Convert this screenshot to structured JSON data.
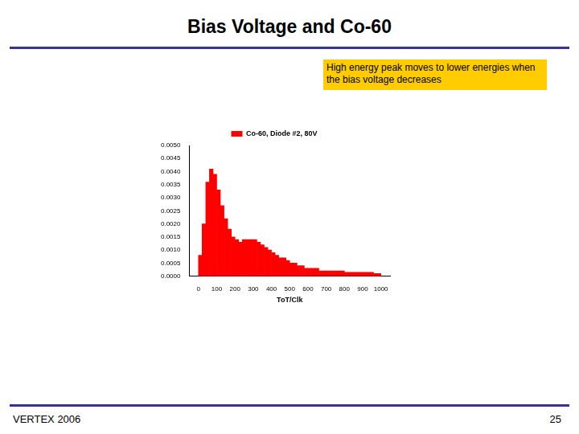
{
  "slide": {
    "title": "Bias Voltage and Co-60",
    "annotation": "High energy peak moves to lower energies when the bias voltage decreases",
    "footer": "VERTEX 2006",
    "page": "25"
  },
  "chart_data": {
    "type": "histogram",
    "x_label": "ToT/Clk",
    "bins": [
      0,
      20,
      40,
      60,
      80,
      100,
      120,
      140,
      160,
      180,
      200,
      220,
      240,
      260,
      280,
      300,
      320,
      340,
      360,
      380,
      400,
      420,
      440,
      460,
      480,
      500,
      520,
      540,
      560,
      580,
      600,
      620,
      640,
      660,
      680,
      700,
      720,
      740,
      760,
      780,
      800,
      820,
      840,
      860,
      880,
      900,
      920,
      940,
      960,
      980,
      1000
    ],
    "series": [
      {
        "name": "Co-60, Diode #2, 80V",
        "color": "#ff0000",
        "values": [
          0.0008,
          0.002,
          0.0036,
          0.0041,
          0.0039,
          0.0033,
          0.0027,
          0.0022,
          0.0018,
          0.0015,
          0.0014,
          0.0013,
          0.0014,
          0.0014,
          0.0014,
          0.0014,
          0.0013,
          0.0012,
          0.0011,
          0.001,
          0.0009,
          0.0008,
          0.0007,
          0.0007,
          0.0006,
          0.0005,
          0.0005,
          0.0004,
          0.0004,
          0.0003,
          0.0003,
          0.0003,
          0.0003,
          0.0002,
          0.0002,
          0.0002,
          0.0002,
          0.0002,
          0.0002,
          0.0002,
          0.00015,
          0.00015,
          0.00015,
          0.00015,
          0.00015,
          0.00015,
          0.00015,
          0.00015,
          0.0001,
          0.0001
        ]
      }
    ],
    "xlim": [
      0,
      1000
    ],
    "xticks": [
      0,
      100,
      200,
      300,
      400,
      500,
      600,
      700,
      800,
      900,
      1000
    ],
    "ylim": [
      0,
      0.005
    ],
    "yticks": [
      {
        "value": 0,
        "label": "0.0000"
      },
      {
        "value": 0.0005,
        "label": "0.0005"
      },
      {
        "value": 0.001,
        "label": "0.0010"
      },
      {
        "value": 0.0015,
        "label": "0.0015"
      },
      {
        "value": 0.002,
        "label": "0.0020"
      },
      {
        "value": 0.0025,
        "label": "0.0025"
      },
      {
        "value": 0.003,
        "label": "0.0030"
      },
      {
        "value": 0.0035,
        "label": "0.0035"
      },
      {
        "value": 0.004,
        "label": "0.0040"
      },
      {
        "value": 0.0045,
        "label": "0.0045"
      },
      {
        "value": 0.005,
        "label": "0.0050"
      }
    ],
    "grid": false,
    "legend": "top"
  }
}
